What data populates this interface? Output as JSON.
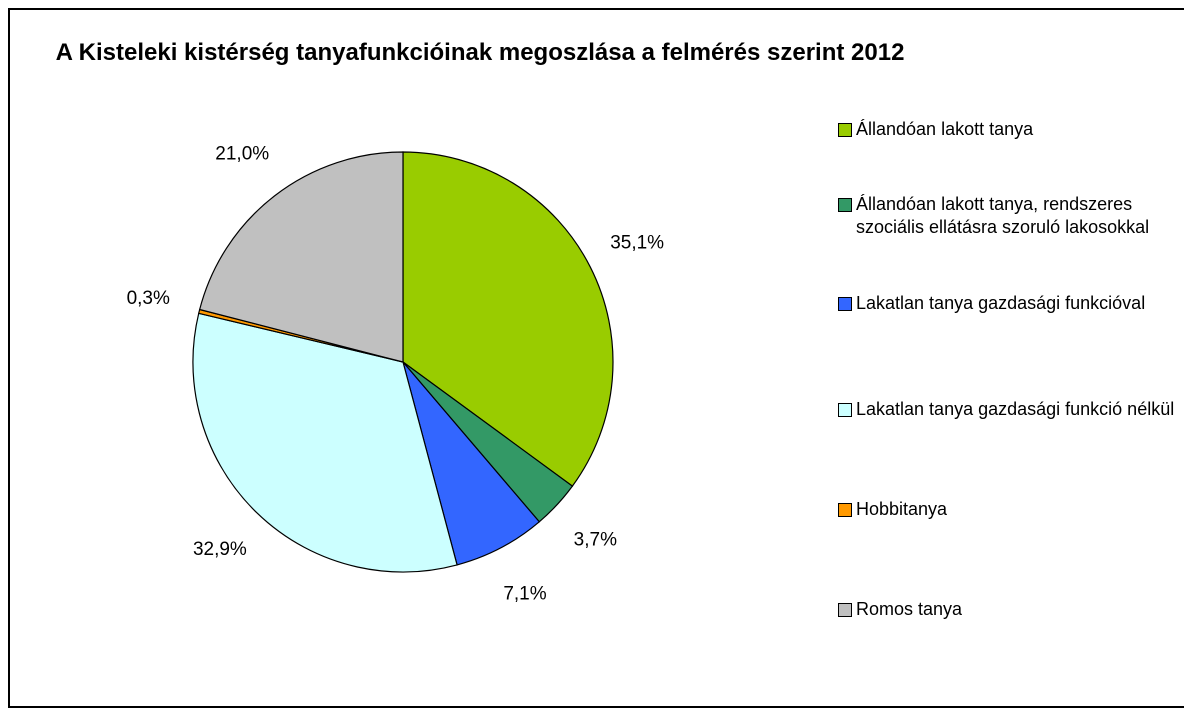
{
  "chart_data": {
    "type": "pie",
    "title": "A Kisteleki kistérség tanyafunkcióinak megoszlása a felmérés szerint 2012",
    "categories": [
      "Állandóan lakott tanya",
      "Állandóan lakott tanya, rendszeres szociális ellátásra szoruló lakosokkal",
      "Lakatlan tanya gazdasági funkcióval",
      "Lakatlan tanya gazdasági funkció nélkül",
      "Hobbitanya",
      "Romos tanya"
    ],
    "values": [
      35.1,
      3.7,
      7.1,
      32.9,
      0.3,
      21.0
    ],
    "value_labels": [
      "35,1%",
      "3,7%",
      "7,1%",
      "32,9%",
      "0,3%",
      "21,0%"
    ],
    "colors": [
      "#99cc00",
      "#339966",
      "#3366ff",
      "#ccffff",
      "#ff9900",
      "#c0c0c0"
    ],
    "legend": "right"
  }
}
